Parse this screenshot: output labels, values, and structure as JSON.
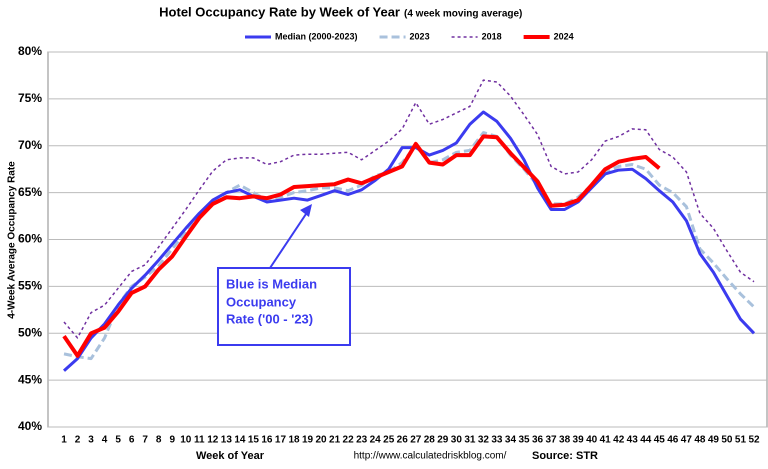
{
  "chart_data": {
    "type": "line",
    "title": "Hotel Occupancy Rate by  Week of Year",
    "subtitle": "(4 week moving average)",
    "x_label": "Week of Year",
    "y_label": "4-Week Average Occupancy Rate",
    "source_url": "http://www.calculatedriskblog.com/",
    "source": "Source: STR",
    "annotation": [
      "Blue is Median",
      "Occupancy",
      "Rate ('00 - '23)"
    ],
    "categories": [
      "1",
      "2",
      "3",
      "4",
      "5",
      "6",
      "7",
      "8",
      "9",
      "10",
      "11",
      "12",
      "13",
      "14",
      "15",
      "16",
      "17",
      "18",
      "19",
      "20",
      "21",
      "22",
      "23",
      "24",
      "25",
      "26",
      "27",
      "28",
      "29",
      "30",
      "31",
      "32",
      "33",
      "34",
      "35",
      "36",
      "37",
      "38",
      "39",
      "40",
      "41",
      "42",
      "43",
      "44",
      "45",
      "46",
      "47",
      "48",
      "49",
      "50",
      "51",
      "52"
    ],
    "ylim": [
      40,
      80
    ],
    "yticks": [
      {
        "value": 40,
        "label": "40%"
      },
      {
        "value": 45,
        "label": "45%"
      },
      {
        "value": 50,
        "label": "50%"
      },
      {
        "value": 55,
        "label": "55%"
      },
      {
        "value": 60,
        "label": "60%"
      },
      {
        "value": 65,
        "label": "65%"
      },
      {
        "value": 70,
        "label": "70%"
      },
      {
        "value": 75,
        "label": "75%"
      },
      {
        "value": 80,
        "label": "80%"
      }
    ],
    "grid": true,
    "series": [
      {
        "name": "Median (2000-2023)",
        "color": "#3b3bef",
        "width": 3,
        "dash": "none",
        "values": [
          46,
          47.3,
          49.5,
          51,
          53,
          54.8,
          56.2,
          57.8,
          59.5,
          61.2,
          62.8,
          64.2,
          65,
          65.3,
          64.6,
          64,
          64.2,
          64.4,
          64.2,
          64.7,
          65.2,
          64.8,
          65.3,
          66.3,
          67.5,
          69.8,
          69.8,
          69,
          69.5,
          70.3,
          72.3,
          73.6,
          72.6,
          70.8,
          68.5,
          65.5,
          63.2,
          63.2,
          64,
          65.5,
          67,
          67.4,
          67.5,
          66.5,
          65.2,
          64,
          62,
          58.5,
          56.5,
          54,
          51.5,
          50
        ]
      },
      {
        "name": "2023",
        "color": "#a9c1dc",
        "width": 3,
        "dash": "8,4",
        "values": [
          47.8,
          47.5,
          47.3,
          49.5,
          53,
          55,
          56,
          57.2,
          59,
          60.8,
          62.5,
          64,
          65,
          65.8,
          65,
          64.2,
          64.5,
          65,
          65.2,
          65.5,
          65.5,
          65.2,
          65.8,
          66.8,
          67.2,
          68.2,
          70,
          68.2,
          68.5,
          69.3,
          69.5,
          71.4,
          71,
          69,
          67.5,
          65.8,
          63.8,
          63.8,
          64.5,
          65.8,
          67.2,
          67.8,
          68,
          67.5,
          65.8,
          65,
          63.5,
          59,
          57.5,
          55.8,
          54.2,
          52.8
        ]
      },
      {
        "name": "2018",
        "color": "#7030a0",
        "width": 1.5,
        "dash": "3,3",
        "values": [
          51.2,
          49.5,
          52.2,
          53,
          54.8,
          56.6,
          57.3,
          59.2,
          61.2,
          63.2,
          65.3,
          67.3,
          68.5,
          68.7,
          68.7,
          68,
          68.3,
          69,
          69.1,
          69.1,
          69.2,
          69.3,
          68.5,
          69.5,
          70.5,
          71.8,
          74.6,
          72.3,
          72.8,
          73.5,
          74.2,
          77,
          76.8,
          75.3,
          73.3,
          71.2,
          67.8,
          67,
          67.2,
          68.5,
          70.5,
          71,
          71.8,
          71.7,
          69.6,
          68.8,
          67.2,
          62.8,
          61.2,
          58.8,
          56.5,
          55.5
        ]
      },
      {
        "name": "2024",
        "color": "#ff0000",
        "width": 4,
        "dash": "none",
        "values": [
          49.7,
          47.6,
          50,
          50.6,
          52.3,
          54.3,
          55,
          56.8,
          58.2,
          60.3,
          62.3,
          63.8,
          64.5,
          64.4,
          64.6,
          64.4,
          64.8,
          65.6,
          65.7,
          65.8,
          65.9,
          66.4,
          66,
          66.6,
          67.2,
          67.8,
          70.2,
          68.2,
          68,
          69,
          69,
          71,
          70.9,
          69.2,
          67.7,
          66.2,
          63.6,
          63.7,
          64.2,
          65.8,
          67.5,
          68.3,
          68.6,
          68.8,
          67.6,
          null,
          null,
          null,
          null,
          null,
          null,
          null
        ]
      }
    ]
  }
}
